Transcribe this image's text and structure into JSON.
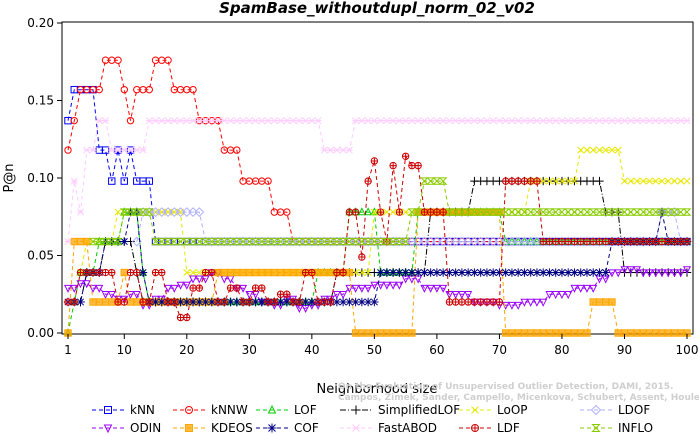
{
  "chart_data": {
    "type": "line",
    "title": "SpamBase_withoutdupl_norm_02_v02",
    "xlabel": "Neighborhood size",
    "ylabel": "P@n",
    "xlim": [
      1,
      100
    ],
    "ylim": [
      0,
      0.2
    ],
    "xticks": [
      1,
      10,
      20,
      30,
      40,
      50,
      60,
      70,
      80,
      90,
      100
    ],
    "yticks": [
      0.0,
      0.05,
      0.1,
      0.15,
      0.2
    ],
    "ytick_labels": [
      "0.00",
      "0.05",
      "0.10",
      "0.15",
      "0.20"
    ],
    "grid": false,
    "legend_position": "bottom",
    "watermark": [
      "On the Evaluation of Unsupervised Outlier Detection, DAMI, 2015.",
      "Campos, Zimek, Sander, Campello, Micenkova, Schubert, Assent, Houle"
    ],
    "series": [
      {
        "name": "kNN",
        "color": "#0000ff",
        "marker": "square",
        "dash": "4,3",
        "points": [
          [
            1,
            0.137
          ],
          [
            2,
            0.157
          ],
          [
            5,
            0.157
          ],
          [
            6,
            0.118
          ],
          [
            8,
            0.098
          ],
          [
            9,
            0.118
          ],
          [
            10,
            0.098
          ],
          [
            11,
            0.118
          ],
          [
            12,
            0.098
          ],
          [
            14,
            0.098
          ],
          [
            15,
            0.059
          ],
          [
            100,
            0.059
          ]
        ]
      },
      {
        "name": "kNNW",
        "color": "#ff0000",
        "marker": "circle",
        "dash": "4,3",
        "points": [
          [
            1,
            0.118
          ],
          [
            2,
            0.137
          ],
          [
            3,
            0.157
          ],
          [
            5,
            0.157
          ],
          [
            7,
            0.176
          ],
          [
            9,
            0.176
          ],
          [
            10,
            0.157
          ],
          [
            11,
            0.137
          ],
          [
            12,
            0.157
          ],
          [
            14,
            0.157
          ],
          [
            15,
            0.176
          ],
          [
            17,
            0.176
          ],
          [
            18,
            0.157
          ],
          [
            21,
            0.157
          ],
          [
            22,
            0.137
          ],
          [
            25,
            0.137
          ],
          [
            26,
            0.118
          ],
          [
            28,
            0.118
          ],
          [
            29,
            0.098
          ],
          [
            33,
            0.098
          ],
          [
            34,
            0.078
          ],
          [
            36,
            0.078
          ],
          [
            37,
            0.059
          ],
          [
            100,
            0.059
          ]
        ]
      },
      {
        "name": "LOF",
        "color": "#00cc00",
        "marker": "triangle-up",
        "dash": "4,3",
        "points": [
          [
            1,
            0.0
          ],
          [
            2,
            0.02
          ],
          [
            3,
            0.039
          ],
          [
            5,
            0.039
          ],
          [
            6,
            0.059
          ],
          [
            9,
            0.059
          ],
          [
            10,
            0.078
          ],
          [
            12,
            0.078
          ],
          [
            13,
            0.039
          ],
          [
            14,
            0.02
          ],
          [
            40,
            0.02
          ],
          [
            41,
            0.039
          ],
          [
            45,
            0.039
          ],
          [
            46,
            0.078
          ],
          [
            50,
            0.078
          ],
          [
            51,
            0.039
          ],
          [
            56,
            0.039
          ],
          [
            57,
            0.078
          ],
          [
            70,
            0.078
          ],
          [
            71,
            0.059
          ],
          [
            100,
            0.059
          ]
        ]
      },
      {
        "name": "SimplifiedLOF",
        "color": "#000000",
        "marker": "plus",
        "dash": "6,2,1,2",
        "points": [
          [
            3,
            0.02
          ],
          [
            4,
            0.039
          ],
          [
            6,
            0.039
          ],
          [
            7,
            0.059
          ],
          [
            11,
            0.059
          ],
          [
            12,
            0.039
          ],
          [
            13,
            0.02
          ],
          [
            43,
            0.02
          ],
          [
            44,
            0.039
          ],
          [
            50,
            0.039
          ],
          [
            51,
            0.039
          ],
          [
            58,
            0.039
          ],
          [
            59,
            0.078
          ],
          [
            65,
            0.078
          ],
          [
            66,
            0.098
          ],
          [
            86,
            0.098
          ],
          [
            87,
            0.078
          ],
          [
            89,
            0.078
          ],
          [
            90,
            0.039
          ],
          [
            100,
            0.039
          ]
        ]
      },
      {
        "name": "LoOP",
        "color": "#e8e800",
        "marker": "x",
        "dash": "4,3",
        "points": [
          [
            3,
            0.039
          ],
          [
            4,
            0.059
          ],
          [
            8,
            0.059
          ],
          [
            9,
            0.078
          ],
          [
            19,
            0.078
          ],
          [
            20,
            0.039
          ],
          [
            49,
            0.039
          ],
          [
            50,
            0.078
          ],
          [
            70,
            0.078
          ],
          [
            71,
            0.078
          ],
          [
            75,
            0.098
          ],
          [
            82,
            0.098
          ],
          [
            83,
            0.118
          ],
          [
            89,
            0.118
          ],
          [
            90,
            0.098
          ],
          [
            100,
            0.098
          ]
        ]
      },
      {
        "name": "LDOF",
        "color": "#b0b0ff",
        "marker": "diamond",
        "dash": "4,3",
        "points": [
          [
            12,
            0.059
          ],
          [
            13,
            0.078
          ],
          [
            22,
            0.078
          ],
          [
            23,
            0.059
          ],
          [
            41,
            0.059
          ],
          [
            42,
            0.059
          ],
          [
            95,
            0.059
          ],
          [
            96,
            0.078
          ],
          [
            98,
            0.078
          ],
          [
            99,
            0.059
          ],
          [
            100,
            0.059
          ]
        ]
      },
      {
        "name": "ODIN",
        "color": "#9900ff",
        "marker": "triangle-down",
        "dash": "4,3",
        "points": [
          [
            1,
            0.029
          ],
          [
            3,
            0.032
          ],
          [
            5,
            0.029
          ],
          [
            7,
            0.025
          ],
          [
            9,
            0.022
          ],
          [
            11,
            0.025
          ],
          [
            13,
            0.018
          ],
          [
            15,
            0.022
          ],
          [
            17,
            0.029
          ],
          [
            19,
            0.031
          ],
          [
            21,
            0.035
          ],
          [
            24,
            0.039
          ],
          [
            26,
            0.035
          ],
          [
            28,
            0.029
          ],
          [
            30,
            0.025
          ],
          [
            32,
            0.02
          ],
          [
            34,
            0.018
          ],
          [
            36,
            0.022
          ],
          [
            38,
            0.016
          ],
          [
            40,
            0.018
          ],
          [
            42,
            0.022
          ],
          [
            44,
            0.025
          ],
          [
            46,
            0.029
          ],
          [
            50,
            0.031
          ],
          [
            55,
            0.035
          ],
          [
            58,
            0.029
          ],
          [
            62,
            0.025
          ],
          [
            66,
            0.02
          ],
          [
            70,
            0.018
          ],
          [
            74,
            0.02
          ],
          [
            78,
            0.025
          ],
          [
            82,
            0.029
          ],
          [
            86,
            0.035
          ],
          [
            88,
            0.039
          ],
          [
            90,
            0.041
          ],
          [
            93,
            0.039
          ],
          [
            100,
            0.041
          ]
        ]
      },
      {
        "name": "KDEOS",
        "color": "#ffa500",
        "marker": "square-filled",
        "dash": "4,3",
        "points": [
          [
            1,
            0.0
          ],
          [
            2,
            0.059
          ],
          [
            4,
            0.059
          ],
          [
            5,
            0.02
          ],
          [
            9,
            0.02
          ],
          [
            10,
            0.039
          ],
          [
            11,
            0.02
          ],
          [
            24,
            0.02
          ],
          [
            25,
            0.039
          ],
          [
            46,
            0.039
          ],
          [
            47,
            0.0
          ],
          [
            56,
            0.0
          ],
          [
            57,
            0.078
          ],
          [
            60,
            0.078
          ],
          [
            61,
            0.078
          ],
          [
            70,
            0.078
          ],
          [
            71,
            0.0
          ],
          [
            84,
            0.0
          ],
          [
            85,
            0.02
          ],
          [
            88,
            0.02
          ],
          [
            89,
            0.0
          ],
          [
            100,
            0.0
          ]
        ]
      },
      {
        "name": "COF",
        "color": "#000080",
        "marker": "star",
        "dash": "4,3",
        "points": [
          [
            1,
            0.02
          ],
          [
            3,
            0.02
          ],
          [
            4,
            0.039
          ],
          [
            6,
            0.039
          ],
          [
            7,
            0.059
          ],
          [
            10,
            0.059
          ],
          [
            11,
            0.078
          ],
          [
            12,
            0.078
          ],
          [
            13,
            0.039
          ],
          [
            14,
            0.02
          ],
          [
            50,
            0.02
          ],
          [
            51,
            0.039
          ],
          [
            85,
            0.039
          ],
          [
            86,
            0.039
          ],
          [
            87,
            0.039
          ],
          [
            88,
            0.059
          ],
          [
            95,
            0.059
          ],
          [
            96,
            0.078
          ],
          [
            97,
            0.059
          ],
          [
            100,
            0.059
          ]
        ]
      },
      {
        "name": "FastABOD",
        "color": "#ffccff",
        "marker": "cross",
        "dash": "4,3",
        "points": [
          [
            1,
            0.059
          ],
          [
            2,
            0.098
          ],
          [
            3,
            0.078
          ],
          [
            4,
            0.118
          ],
          [
            6,
            0.137
          ],
          [
            8,
            0.118
          ],
          [
            13,
            0.118
          ],
          [
            14,
            0.137
          ],
          [
            41,
            0.137
          ],
          [
            42,
            0.118
          ],
          [
            46,
            0.118
          ],
          [
            47,
            0.137
          ],
          [
            100,
            0.137
          ]
        ]
      },
      {
        "name": "LDF",
        "color": "#cc0000",
        "marker": "circle-plus",
        "dash": "4,3",
        "points": [
          [
            1,
            0.02
          ],
          [
            2,
            0.02
          ],
          [
            3,
            0.039
          ],
          [
            5,
            0.039
          ],
          [
            7,
            0.039
          ],
          [
            9,
            0.02
          ],
          [
            11,
            0.039
          ],
          [
            13,
            0.02
          ],
          [
            15,
            0.039
          ],
          [
            17,
            0.02
          ],
          [
            19,
            0.01
          ],
          [
            21,
            0.029
          ],
          [
            23,
            0.039
          ],
          [
            25,
            0.02
          ],
          [
            27,
            0.029
          ],
          [
            29,
            0.02
          ],
          [
            31,
            0.029
          ],
          [
            33,
            0.02
          ],
          [
            35,
            0.025
          ],
          [
            37,
            0.02
          ],
          [
            39,
            0.039
          ],
          [
            41,
            0.02
          ],
          [
            44,
            0.039
          ],
          [
            46,
            0.078
          ],
          [
            48,
            0.049
          ],
          [
            49,
            0.098
          ],
          [
            50,
            0.111
          ],
          [
            51,
            0.078
          ],
          [
            52,
            0.059
          ],
          [
            53,
            0.108
          ],
          [
            54,
            0.078
          ],
          [
            55,
            0.114
          ],
          [
            56,
            0.108
          ],
          [
            58,
            0.078
          ],
          [
            60,
            0.078
          ],
          [
            62,
            0.02
          ],
          [
            66,
            0.02
          ],
          [
            70,
            0.02
          ],
          [
            71,
            0.098
          ],
          [
            76,
            0.098
          ],
          [
            77,
            0.059
          ],
          [
            100,
            0.059
          ]
        ]
      },
      {
        "name": "INFLO",
        "color": "#88cc00",
        "marker": "hourglass",
        "dash": "4,3",
        "points": [
          [
            5,
            0.059
          ],
          [
            9,
            0.059
          ],
          [
            10,
            0.078
          ],
          [
            14,
            0.078
          ],
          [
            15,
            0.059
          ],
          [
            55,
            0.059
          ],
          [
            56,
            0.078
          ],
          [
            58,
            0.098
          ],
          [
            61,
            0.098
          ],
          [
            62,
            0.078
          ],
          [
            74,
            0.078
          ],
          [
            75,
            0.078
          ],
          [
            100,
            0.078
          ]
        ]
      }
    ]
  }
}
